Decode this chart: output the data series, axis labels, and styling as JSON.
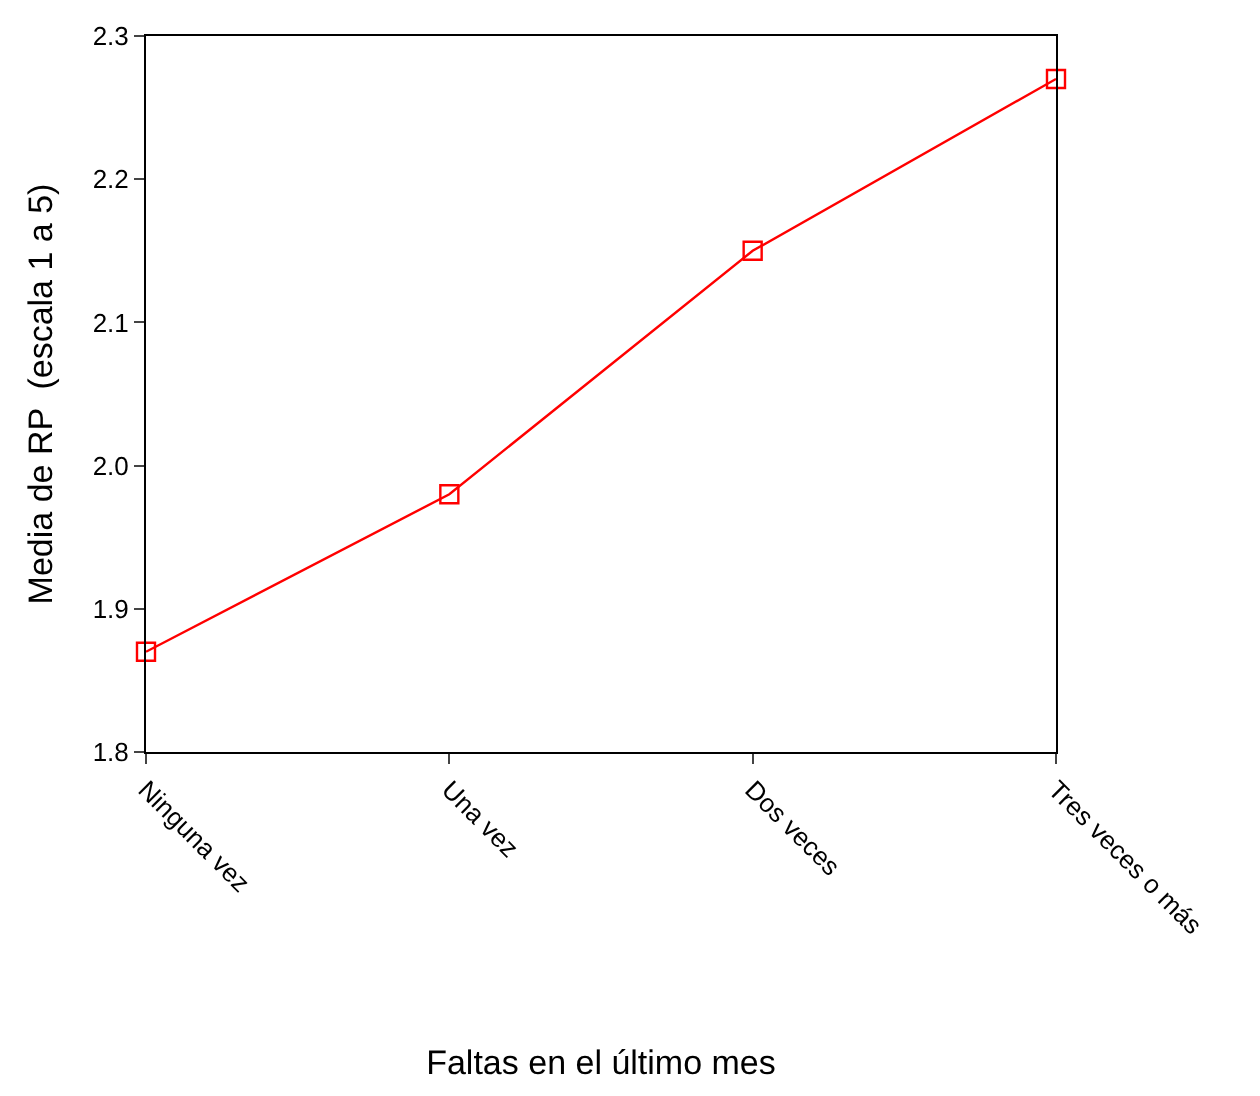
{
  "chart_data": {
    "type": "line",
    "xlabel": "Faltas en el último mes",
    "ylabel": "Media de RP  (escala 1 a 5)",
    "categories": [
      "Ninguna vez",
      "Una vez",
      "Dos veces",
      "Tres veces o más"
    ],
    "series": [
      {
        "color": "#ff0000",
        "values": [
          1.87,
          1.98,
          2.15,
          2.27
        ]
      }
    ],
    "ylim": [
      1.8,
      2.3
    ],
    "yticks": [
      1.8,
      1.9,
      {
        "value": 2.0,
        "label": "2.0"
      },
      2.1,
      2.2,
      2.3
    ],
    "legend": false,
    "marker": "square",
    "line_style": "solid"
  }
}
